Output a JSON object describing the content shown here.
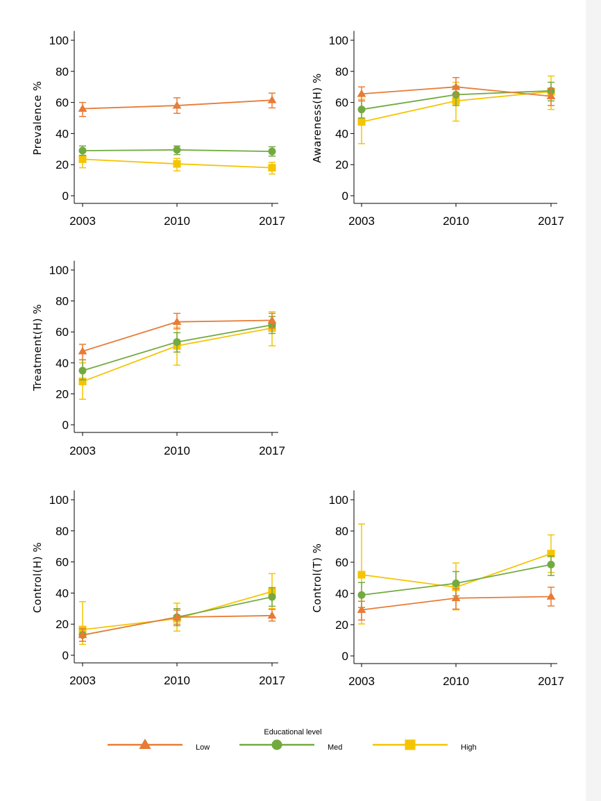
{
  "colors": {
    "low": "#E87B35",
    "med": "#72AA40",
    "high": "#F5C400"
  },
  "legend": {
    "title": "Educational level",
    "items": [
      {
        "key": "low",
        "label": "Low",
        "marker": "triangle"
      },
      {
        "key": "med",
        "label": "Med",
        "marker": "circle"
      },
      {
        "key": "high",
        "label": "High",
        "marker": "square"
      }
    ]
  },
  "chart_data": [
    {
      "type": "line",
      "ylabel": "Prevalence %",
      "x": [
        2003,
        2010,
        2017
      ],
      "yticks": [
        0,
        20,
        40,
        60,
        80,
        100
      ],
      "ylim": [
        -5,
        106
      ],
      "series": [
        {
          "key": "low",
          "values": [
            56,
            58,
            61.5
          ],
          "ci_low": [
            51,
            53,
            56.5
          ],
          "ci_high": [
            60,
            63,
            66
          ]
        },
        {
          "key": "med",
          "values": [
            29,
            29.5,
            28.5
          ],
          "ci_low": [
            26,
            26.5,
            25.5
          ],
          "ci_high": [
            32,
            32,
            31.5
          ]
        },
        {
          "key": "high",
          "values": [
            23.5,
            20.5,
            18
          ],
          "ci_low": [
            18,
            16,
            14
          ],
          "ci_high": [
            25.5,
            24,
            21.5
          ]
        }
      ]
    },
    {
      "type": "line",
      "ylabel": "Awareness(H) %",
      "x": [
        2003,
        2010,
        2017
      ],
      "yticks": [
        0,
        20,
        40,
        60,
        80,
        100
      ],
      "ylim": [
        -5,
        106
      ],
      "series": [
        {
          "key": "low",
          "values": [
            65.5,
            70,
            64
          ],
          "ci_low": [
            61,
            64.5,
            58
          ],
          "ci_high": [
            70,
            76,
            69
          ]
        },
        {
          "key": "med",
          "values": [
            55.5,
            65,
            67.5
          ],
          "ci_low": [
            50,
            58,
            61
          ],
          "ci_high": [
            61,
            70.5,
            73
          ]
        },
        {
          "key": "high",
          "values": [
            47.5,
            61,
            67
          ],
          "ci_low": [
            33.5,
            48,
            55.5
          ],
          "ci_high": [
            62,
            73,
            77
          ]
        }
      ]
    },
    {
      "type": "line",
      "ylabel": "Treatment(H) %",
      "x": [
        2003,
        2010,
        2017
      ],
      "yticks": [
        0,
        20,
        40,
        60,
        80,
        100
      ],
      "ylim": [
        -5,
        106
      ],
      "series": [
        {
          "key": "low",
          "values": [
            47.5,
            66.5,
            67.5
          ],
          "ci_low": [
            42,
            62,
            62.5
          ],
          "ci_high": [
            52,
            72,
            72
          ]
        },
        {
          "key": "med",
          "values": [
            35,
            53.5,
            64.5
          ],
          "ci_low": [
            29,
            47,
            59
          ],
          "ci_high": [
            42,
            59.5,
            70
          ]
        },
        {
          "key": "high",
          "values": [
            28,
            51,
            62.5
          ],
          "ci_low": [
            16.5,
            38.5,
            51
          ],
          "ci_high": [
            40,
            63,
            73
          ]
        }
      ]
    },
    {
      "type": "line",
      "ylabel": "Control(H) %",
      "x": [
        2003,
        2010,
        2017
      ],
      "yticks": [
        0,
        20,
        40,
        60,
        80,
        100
      ],
      "ylim": [
        -5,
        106
      ],
      "series": [
        {
          "key": "low",
          "values": [
            13,
            24.5,
            25.5
          ],
          "ci_low": [
            9,
            20,
            22
          ],
          "ci_high": [
            17,
            29,
            29.5
          ]
        },
        {
          "key": "med",
          "values": [
            13,
            24.5,
            37.5
          ],
          "ci_low": [
            9,
            19,
            31.5
          ],
          "ci_high": [
            17,
            30,
            43.5
          ]
        },
        {
          "key": "high",
          "values": [
            16.5,
            23.5,
            41
          ],
          "ci_low": [
            7,
            15.5,
            30
          ],
          "ci_high": [
            34.5,
            33.5,
            52.5
          ]
        }
      ]
    },
    {
      "type": "line",
      "ylabel": "Control(T) %",
      "x": [
        2003,
        2010,
        2017
      ],
      "yticks": [
        0,
        20,
        40,
        60,
        80,
        100
      ],
      "ylim": [
        -5,
        106
      ],
      "series": [
        {
          "key": "low",
          "values": [
            29.5,
            37,
            38
          ],
          "ci_low": [
            23,
            30,
            32
          ],
          "ci_high": [
            35,
            43,
            44
          ]
        },
        {
          "key": "med",
          "values": [
            39,
            46.5,
            58.5
          ],
          "ci_low": [
            31,
            38.5,
            51.5
          ],
          "ci_high": [
            47,
            54,
            64
          ]
        },
        {
          "key": "high",
          "values": [
            52,
            44,
            65.5
          ],
          "ci_low": [
            20.5,
            29.5,
            53.5
          ],
          "ci_high": [
            84.5,
            59.5,
            77.5
          ]
        }
      ]
    }
  ]
}
